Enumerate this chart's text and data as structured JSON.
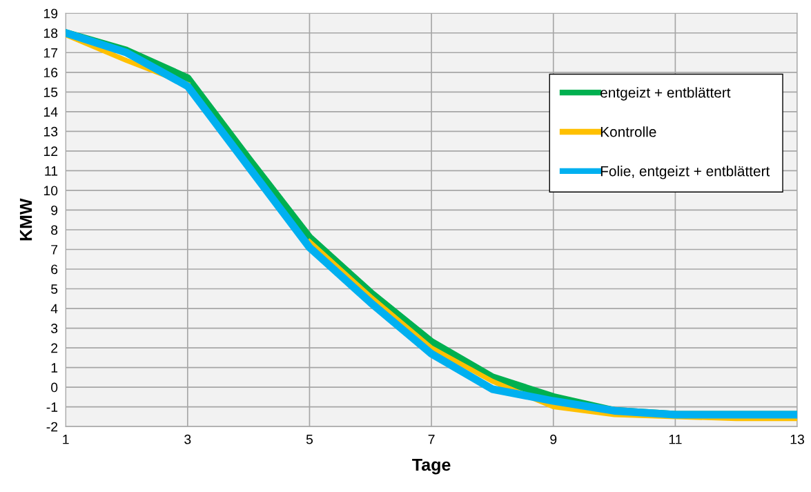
{
  "chart_data": {
    "type": "line",
    "xlabel": "Tage",
    "ylabel": "KMW",
    "x": [
      1,
      2,
      3,
      4,
      5,
      6,
      7,
      8,
      9,
      10,
      11,
      12,
      13
    ],
    "series": [
      {
        "name": "entgeizt + entblättert",
        "color": "#00b050",
        "values": [
          18.0,
          17.1,
          15.7,
          11.6,
          7.6,
          4.8,
          2.3,
          0.5,
          -0.5,
          -1.2,
          -1.4,
          -1.4,
          -1.4
        ]
      },
      {
        "name": "Kontrolle",
        "color": "#ffc000",
        "values": [
          17.9,
          16.6,
          15.4,
          null,
          7.4,
          4.6,
          2.0,
          0.3,
          -1.0,
          -1.4,
          -1.5,
          -1.6,
          -1.6
        ]
      },
      {
        "name": "Folie, entgeizt + entblättert",
        "color": "#00b0f0",
        "values": [
          18.0,
          17.0,
          15.3,
          11.2,
          7.1,
          4.3,
          1.7,
          -0.1,
          -0.7,
          -1.2,
          -1.4,
          -1.4,
          -1.4
        ]
      }
    ],
    "xlim": [
      1,
      13
    ],
    "xticks": [
      1,
      3,
      5,
      7,
      9,
      11,
      13
    ],
    "ylim": [
      -2,
      19
    ],
    "yticks": [
      -2,
      -1,
      0,
      1,
      2,
      3,
      4,
      5,
      6,
      7,
      8,
      9,
      10,
      11,
      12,
      13,
      14,
      15,
      16,
      17,
      18,
      19
    ],
    "grid": true,
    "legend": "top right",
    "marker": "none",
    "line_style": "solid"
  }
}
